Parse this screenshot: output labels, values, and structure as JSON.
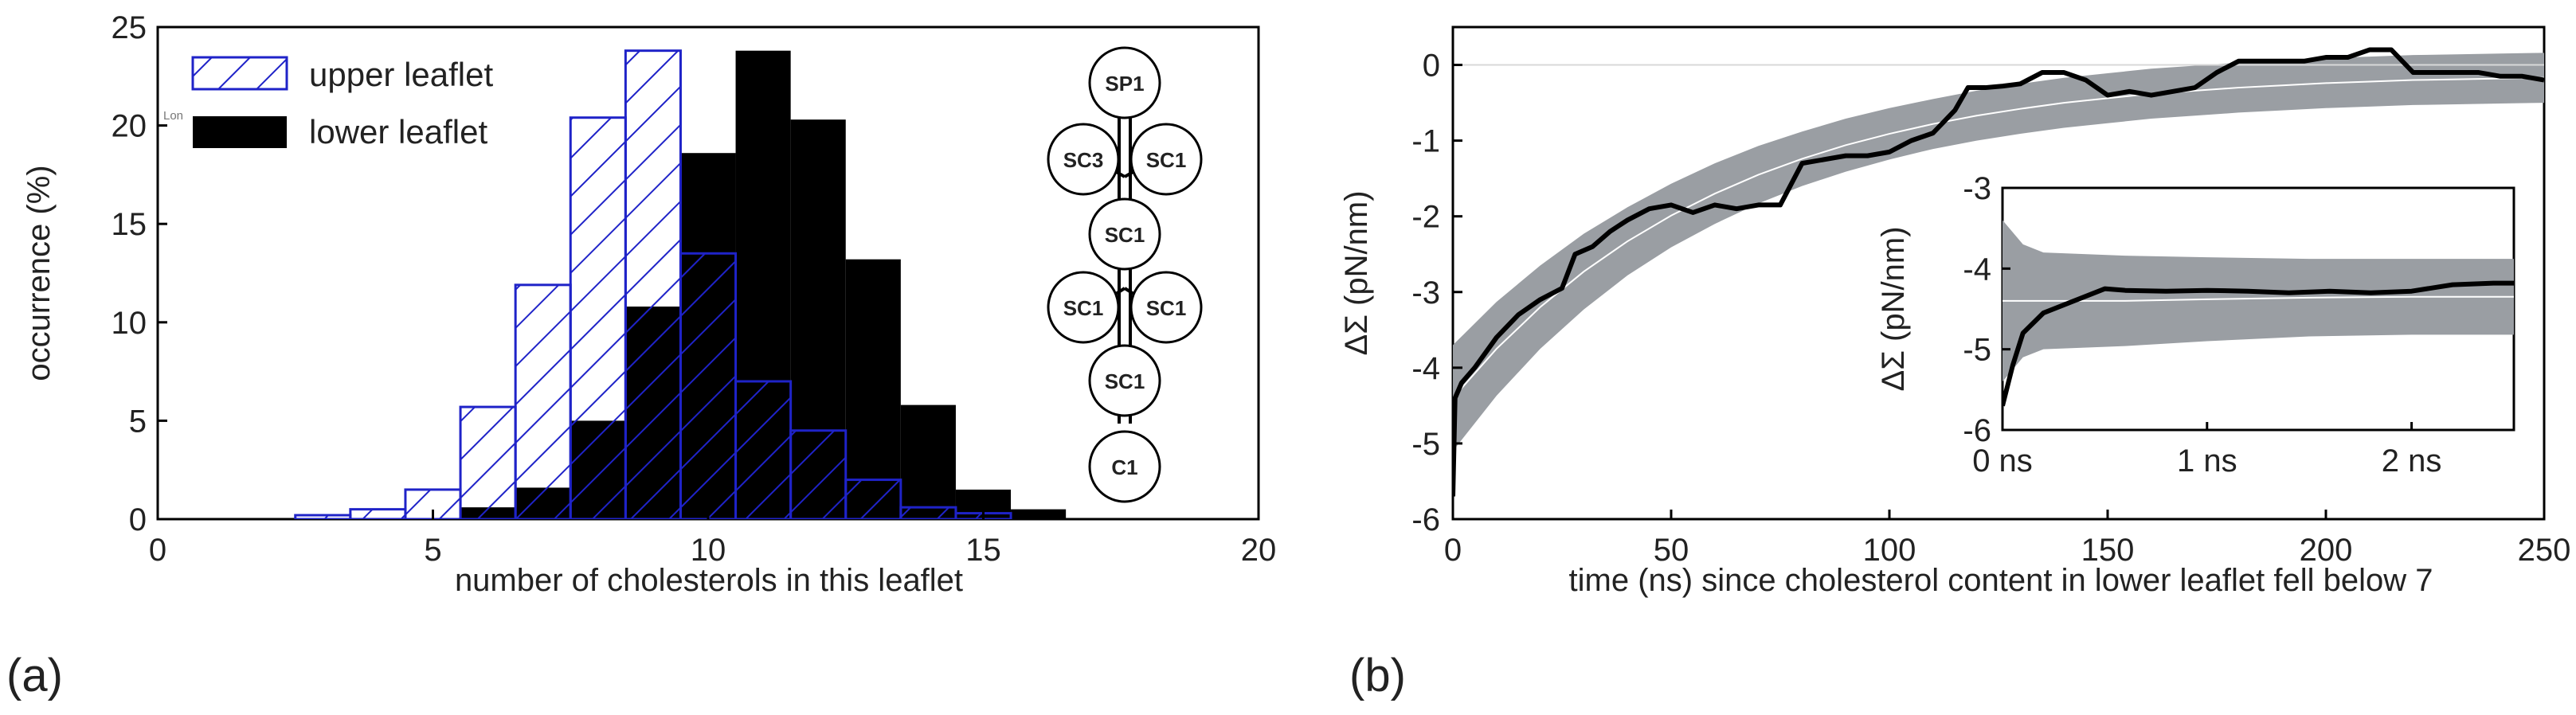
{
  "chart_data": [
    {
      "type": "bar",
      "panel_label": "(a)",
      "xlabel": "number of cholesterols in this leaflet",
      "ylabel": "occurrence (%)",
      "xlim": [
        0,
        20
      ],
      "ylim": [
        0,
        25
      ],
      "xticks": [
        "0",
        "5",
        "10",
        "15",
        "20"
      ],
      "yticks": [
        "0",
        "5",
        "10",
        "15",
        "20",
        "25"
      ],
      "legend_position": "top-left",
      "categories": [
        3,
        4,
        5,
        6,
        7,
        8,
        9,
        10,
        11,
        12,
        13,
        14,
        15,
        16,
        17
      ],
      "series": [
        {
          "name": "upper leaflet",
          "style": "hatched-outline",
          "color": "#1f23c8",
          "values": [
            0.2,
            0.5,
            1.5,
            5.7,
            11.9,
            20.4,
            23.8,
            13.5,
            7.0,
            4.5,
            2.0,
            0.6,
            0.3,
            0.0,
            0.0
          ]
        },
        {
          "name": "lower leaflet",
          "style": "solid",
          "color": "#000000",
          "values": [
            0.0,
            0.0,
            0.0,
            0.6,
            1.6,
            5.0,
            10.8,
            18.6,
            23.8,
            20.3,
            13.2,
            5.8,
            1.5,
            0.5,
            0.0
          ]
        }
      ],
      "faint_text": "Lon",
      "molecule_diagram": {
        "nodes": [
          "SP1",
          "SC3",
          "SC1",
          "SC1",
          "SC1",
          "SC1",
          "SC1",
          "C1"
        ]
      }
    },
    {
      "type": "line",
      "panel_label": "(b)",
      "xlabel": "time (ns) since cholesterol content in lower leaflet fell below 7",
      "ylabel": "ΔΣ (pN/nm)",
      "xlim": [
        0,
        250
      ],
      "ylim": [
        -6,
        0.5
      ],
      "xticks": [
        "0",
        "50",
        "100",
        "150",
        "200",
        "250"
      ],
      "yticks": [
        "-6",
        "-5",
        "-4",
        "-3",
        "-2",
        "-1",
        "0"
      ],
      "series": [
        {
          "name": "data",
          "color": "#000000",
          "x": [
            0,
            0.5,
            2,
            5,
            10,
            15,
            20,
            25,
            28,
            32,
            36,
            40,
            45,
            50,
            55,
            60,
            65,
            70,
            75,
            80,
            85,
            90,
            95,
            100,
            105,
            110,
            115,
            118,
            122,
            126,
            130,
            135,
            140,
            145,
            150,
            155,
            160,
            165,
            170,
            175,
            180,
            185,
            190,
            195,
            200,
            205,
            210,
            215,
            220,
            225,
            230,
            235,
            240,
            245,
            250
          ],
          "y": [
            -5.7,
            -4.4,
            -4.2,
            -4.0,
            -3.6,
            -3.3,
            -3.1,
            -2.95,
            -2.5,
            -2.4,
            -2.2,
            -2.05,
            -1.9,
            -1.85,
            -1.95,
            -1.85,
            -1.9,
            -1.85,
            -1.85,
            -1.3,
            -1.25,
            -1.2,
            -1.2,
            -1.15,
            -1.0,
            -0.9,
            -0.6,
            -0.3,
            -0.3,
            -0.28,
            -0.25,
            -0.1,
            -0.1,
            -0.2,
            -0.4,
            -0.35,
            -0.4,
            -0.35,
            -0.3,
            -0.1,
            0.05,
            0.05,
            0.05,
            0.05,
            0.1,
            0.1,
            0.2,
            0.2,
            -0.1,
            -0.1,
            -0.1,
            -0.1,
            -0.15,
            -0.15,
            -0.2
          ]
        },
        {
          "name": "fit",
          "color": "#ffffff",
          "x": [
            0,
            10,
            20,
            30,
            40,
            50,
            60,
            70,
            80,
            90,
            100,
            110,
            120,
            130,
            140,
            150,
            160,
            170,
            180,
            190,
            200,
            210,
            220,
            230,
            240,
            250
          ],
          "y": [
            -4.4,
            -3.75,
            -3.2,
            -2.73,
            -2.33,
            -1.99,
            -1.7,
            -1.45,
            -1.24,
            -1.06,
            -0.91,
            -0.78,
            -0.67,
            -0.58,
            -0.5,
            -0.44,
            -0.38,
            -0.34,
            -0.3,
            -0.27,
            -0.24,
            -0.22,
            -0.2,
            -0.19,
            -0.18,
            -0.17
          ],
          "band_halfwidth": [
            0.7,
            0.62,
            0.55,
            0.5,
            0.45,
            0.42,
            0.4,
            0.38,
            0.36,
            0.35,
            0.34,
            0.33,
            0.33,
            0.33,
            0.33,
            0.33,
            0.33,
            0.33,
            0.33,
            0.33,
            0.33,
            0.33,
            0.33,
            0.33,
            0.33,
            0.33
          ]
        }
      ],
      "inset": {
        "ylabel": "ΔΣ (pN/nm)",
        "xlim": [
          0,
          2.5
        ],
        "ylim": [
          -6,
          -3
        ],
        "xticks": [
          "0 ns",
          "1 ns",
          "2 ns"
        ],
        "xtick_values": [
          0,
          1,
          2
        ],
        "yticks": [
          "-6",
          "-5",
          "-4",
          "-3"
        ],
        "data": {
          "x": [
            0,
            0.05,
            0.1,
            0.2,
            0.3,
            0.4,
            0.5,
            0.6,
            0.8,
            1.0,
            1.2,
            1.4,
            1.6,
            1.8,
            2.0,
            2.2,
            2.4,
            2.5
          ],
          "y": [
            -5.7,
            -5.2,
            -4.8,
            -4.55,
            -4.45,
            -4.35,
            -4.25,
            -4.27,
            -4.28,
            -4.27,
            -4.28,
            -4.3,
            -4.28,
            -4.3,
            -4.28,
            -4.2,
            -4.18,
            -4.18
          ]
        },
        "fit": {
          "x": [
            0,
            0.1,
            0.2,
            0.4,
            0.6,
            1.0,
            1.5,
            2.0,
            2.5
          ],
          "y": [
            -4.4,
            -4.4,
            -4.4,
            -4.4,
            -4.4,
            -4.38,
            -4.36,
            -4.35,
            -4.35
          ],
          "band_halfwidth": [
            1.0,
            0.7,
            0.6,
            0.58,
            0.56,
            0.52,
            0.48,
            0.47,
            0.47
          ]
        }
      }
    }
  ]
}
